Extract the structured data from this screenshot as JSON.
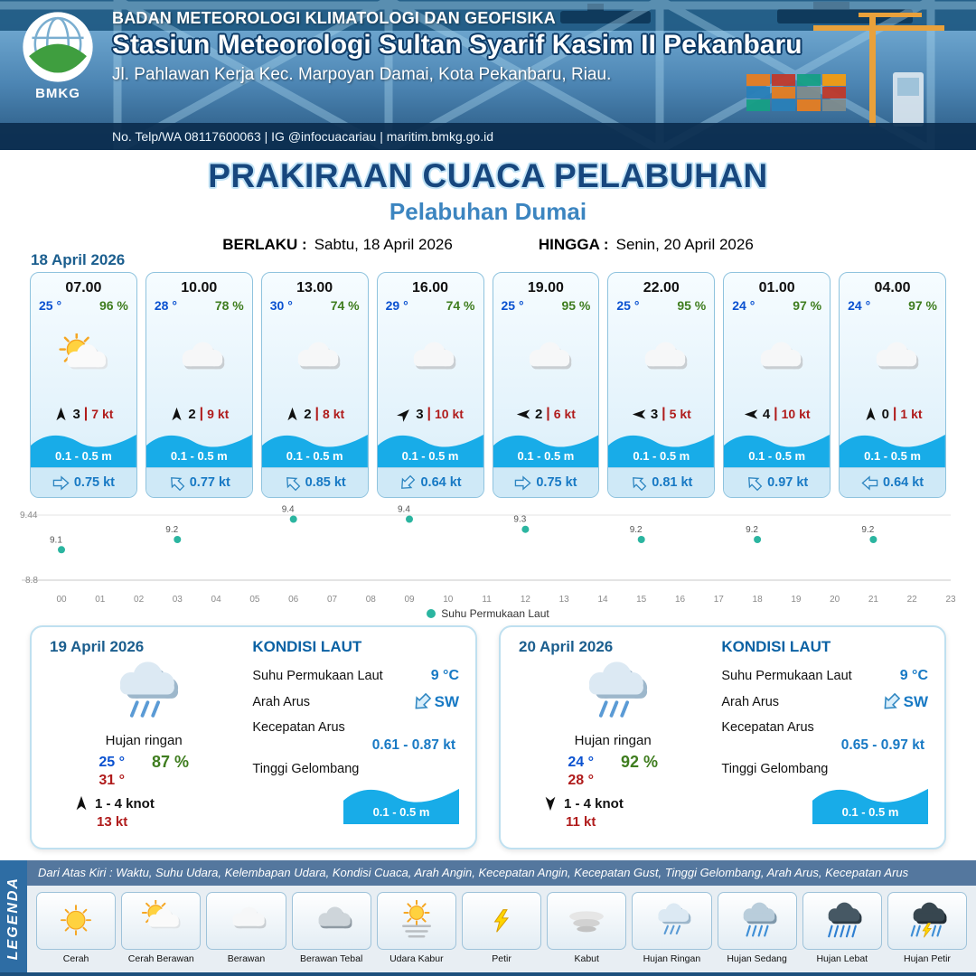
{
  "colors": {
    "temp_blue": "#0a51d0",
    "humidity_green": "#3f7d1f",
    "gust_red": "#b01c1c",
    "wave_blue": "#18ace8",
    "current_blue": "#1779c4",
    "point_teal": "#2bb5a0",
    "title_navy": "#17477e",
    "subtitle_blue": "#3c85c0",
    "date_blue": "#1b5e8e",
    "legend_bar": "#2e6da4"
  },
  "header": {
    "logo": "BMKG",
    "org": "BADAN METEOROLOGI KLIMATOLOGI DAN GEOFISIKA",
    "station": "Stasiun Meteorologi Sultan Syarif Kasim II Pekanbaru",
    "address": "Jl. Pahlawan Kerja Kec. Marpoyan Damai, Kota Pekanbaru, Riau.",
    "contact": "No. Telp/WA 08117600063 | IG @infocuacariau | maritim.bmkg.go.id"
  },
  "title": {
    "main": "PRAKIRAAN CUACA PELABUHAN",
    "sub": "Pelabuhan Dumai",
    "berlaku_label": "BERLAKU :",
    "berlaku_value": "Sabtu, 18 April 2026",
    "hingga_label": "HINGGA :",
    "hingga_value": "Senin, 20 April 2026"
  },
  "forecast": {
    "date": "18 April 2026",
    "cards": [
      {
        "time": "07.00",
        "temp": "25 °",
        "humidity": "96 %",
        "icon": "sun-cloud",
        "wind_dir": "N",
        "wind_val": "3",
        "wind_gust": "7 kt",
        "wave": "0.1 - 0.5 m",
        "cur_dir": "E",
        "cur_speed": "0.75 kt"
      },
      {
        "time": "10.00",
        "temp": "28 °",
        "humidity": "78 %",
        "icon": "cloud",
        "wind_dir": "N",
        "wind_val": "2",
        "wind_gust": "9 kt",
        "wave": "0.1 - 0.5 m",
        "cur_dir": "NW",
        "cur_speed": "0.77 kt"
      },
      {
        "time": "13.00",
        "temp": "30 °",
        "humidity": "74 %",
        "icon": "cloud",
        "wind_dir": "N",
        "wind_val": "2",
        "wind_gust": "8 kt",
        "wave": "0.1 - 0.5 m",
        "cur_dir": "NW",
        "cur_speed": "0.85 kt"
      },
      {
        "time": "16.00",
        "temp": "29 °",
        "humidity": "74 %",
        "icon": "cloud",
        "wind_dir": "NE",
        "wind_val": "3",
        "wind_gust": "10 kt",
        "wave": "0.1 - 0.5 m",
        "cur_dir": "SW",
        "cur_speed": "0.64 kt"
      },
      {
        "time": "19.00",
        "temp": "25 °",
        "humidity": "95 %",
        "icon": "cloud",
        "wind_dir": "W",
        "wind_val": "2",
        "wind_gust": "6 kt",
        "wave": "0.1 - 0.5 m",
        "cur_dir": "E",
        "cur_speed": "0.75 kt"
      },
      {
        "time": "22.00",
        "temp": "25 °",
        "humidity": "95 %",
        "icon": "cloud",
        "wind_dir": "W",
        "wind_val": "3",
        "wind_gust": "5 kt",
        "wave": "0.1 - 0.5 m",
        "cur_dir": "NW",
        "cur_speed": "0.81 kt"
      },
      {
        "time": "01.00",
        "temp": "24 °",
        "humidity": "97 %",
        "icon": "cloud",
        "wind_dir": "W",
        "wind_val": "4",
        "wind_gust": "10 kt",
        "wave": "0.1 - 0.5 m",
        "cur_dir": "NW",
        "cur_speed": "0.97 kt"
      },
      {
        "time": "04.00",
        "temp": "24 °",
        "humidity": "97 %",
        "icon": "cloud",
        "wind_dir": "N",
        "wind_val": "0",
        "wind_gust": "1 kt",
        "wave": "0.1 - 0.5 m",
        "cur_dir": "W",
        "cur_speed": "0.64 kt"
      }
    ]
  },
  "chart_data": {
    "type": "scatter",
    "title": "",
    "legend": "Suhu Permukaan Laut",
    "x": [
      0,
      3,
      6,
      9,
      12,
      15,
      18,
      21
    ],
    "values": [
      9.1,
      9.2,
      9.4,
      9.4,
      9.3,
      9.2,
      9.2,
      9.2
    ],
    "x_ticks": [
      "00",
      "01",
      "02",
      "03",
      "04",
      "05",
      "06",
      "07",
      "08",
      "09",
      "10",
      "11",
      "12",
      "13",
      "14",
      "15",
      "16",
      "17",
      "18",
      "19",
      "20",
      "21",
      "22",
      "23"
    ],
    "ylim": [
      8.8,
      9.44
    ],
    "y_tick_top": "9.44",
    "y_tick_bottom": "8.8",
    "grid": true,
    "legend_position": "bottom",
    "point_color": "#2bb5a0"
  },
  "day_cards": [
    {
      "date": "19 April 2026",
      "icon": "rain-light",
      "condition": "Hujan ringan",
      "temp_min": "25 °",
      "temp_max": "31 °",
      "humidity": "87 %",
      "wind_dir": "N",
      "wind_range": "1 - 4 knot",
      "wind_gust": "13 kt",
      "sea": {
        "title": "KONDISI LAUT",
        "sst_label": "Suhu Permukaan Laut",
        "sst": "9 °C",
        "current_dir_label": "Arah Arus",
        "current_dir": "SW",
        "current_speed_label": "Kecepatan Arus",
        "current_speed": "0.61 - 0.87 kt",
        "wave_label": "Tinggi Gelombang",
        "wave": "0.1 - 0.5 m"
      }
    },
    {
      "date": "20 April 2026",
      "icon": "rain-light",
      "condition": "Hujan ringan",
      "temp_min": "24 °",
      "temp_max": "28 °",
      "humidity": "92 %",
      "wind_dir": "S",
      "wind_range": "1 - 4 knot",
      "wind_gust": "11 kt",
      "sea": {
        "title": "KONDISI LAUT",
        "sst_label": "Suhu Permukaan Laut",
        "sst": "9 °C",
        "current_dir_label": "Arah Arus",
        "current_dir": "SW",
        "current_speed_label": "Kecepatan Arus",
        "current_speed": "0.65 - 0.97 kt",
        "wave_label": "Tinggi Gelombang",
        "wave": "0.1 - 0.5 m"
      }
    }
  ],
  "legend": {
    "sidebar": "LEGENDA",
    "description": "Dari Atas Kiri : Waktu, Suhu Udara, Kelembapan Udara, Kondisi Cuaca, Arah Angin, Kecepatan Angin, Kecepatan Gust, Tinggi Gelombang, Arah Arus, Kecepatan Arus",
    "items": [
      {
        "label": "Cerah",
        "icon": "sun"
      },
      {
        "label": "Cerah Berawan",
        "icon": "sun-cloud"
      },
      {
        "label": "Berawan",
        "icon": "cloud"
      },
      {
        "label": "Berawan Tebal",
        "icon": "cloud-thick"
      },
      {
        "label": "Udara Kabur",
        "icon": "haze"
      },
      {
        "label": "Petir",
        "icon": "lightning"
      },
      {
        "label": "Kabut",
        "icon": "fog"
      },
      {
        "label": "Hujan Ringan",
        "icon": "rain-light"
      },
      {
        "label": "Hujan Sedang",
        "icon": "rain-medium"
      },
      {
        "label": "Hujan Lebat",
        "icon": "rain-heavy"
      },
      {
        "label": "Hujan Petir",
        "icon": "rain-lightning"
      }
    ]
  }
}
